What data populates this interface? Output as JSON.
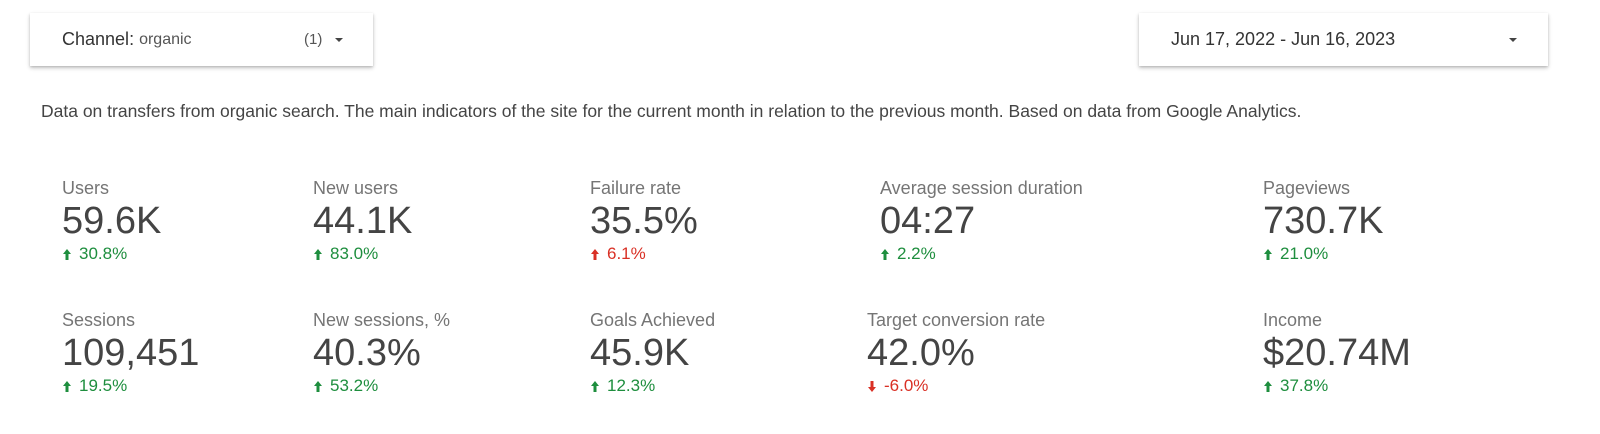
{
  "channel_filter": {
    "label": "Channel",
    "separator": ": ",
    "value": "organic",
    "count": "(1)",
    "icon": "chevron-down-icon"
  },
  "date_range": {
    "text": "Jun 17, 2022 - Jun 16, 2023",
    "icon": "chevron-down-icon"
  },
  "description": "Data on transfers from organic search. The main indicators of the site for the current month in relation to the previous month. Based on data from Google Analytics.",
  "colors": {
    "positive": "#1e8e3e",
    "negative": "#d93025"
  },
  "metrics": [
    {
      "label": "Users",
      "value": "59.6K",
      "change": "30.8%",
      "arrow": "up",
      "tone": "positive"
    },
    {
      "label": "New users",
      "value": "44.1K",
      "change": "83.0%",
      "arrow": "up",
      "tone": "positive"
    },
    {
      "label": "Failure rate",
      "value": "35.5%",
      "change": "6.1%",
      "arrow": "up",
      "tone": "negative"
    },
    {
      "label": "Average session duration",
      "value": "04:27",
      "change": "2.2%",
      "arrow": "up",
      "tone": "positive"
    },
    {
      "label": "Pageviews",
      "value": "730.7K",
      "change": "21.0%",
      "arrow": "up",
      "tone": "positive"
    },
    {
      "label": "Sessions",
      "value": "109,451",
      "change": "19.5%",
      "arrow": "up",
      "tone": "positive"
    },
    {
      "label": "New sessions, %",
      "value": "40.3%",
      "change": "53.2%",
      "arrow": "up",
      "tone": "positive"
    },
    {
      "label": "Goals Achieved",
      "value": "45.9K",
      "change": "12.3%",
      "arrow": "up",
      "tone": "positive"
    },
    {
      "label": "Target conversion rate",
      "value": "42.0%",
      "change": "-6.0%",
      "arrow": "down",
      "tone": "negative"
    },
    {
      "label": "Income",
      "value": "$20.74M",
      "change": "37.8%",
      "arrow": "up",
      "tone": "positive"
    }
  ]
}
